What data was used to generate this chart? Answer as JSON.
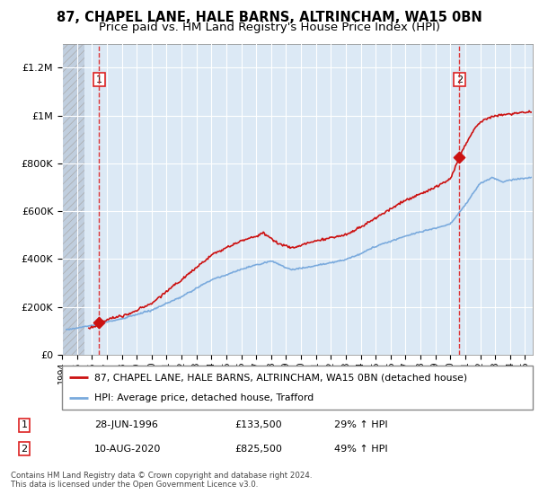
{
  "title1": "87, CHAPEL LANE, HALE BARNS, ALTRINCHAM, WA15 0BN",
  "title2": "Price paid vs. HM Land Registry's House Price Index (HPI)",
  "legend_line1": "87, CHAPEL LANE, HALE BARNS, ALTRINCHAM, WA15 0BN (detached house)",
  "legend_line2": "HPI: Average price, detached house, Trafford",
  "footnote": "Contains HM Land Registry data © Crown copyright and database right 2024.\nThis data is licensed under the Open Government Licence v3.0.",
  "annotation1": {
    "num": "1",
    "date": "28-JUN-1996",
    "price": "£133,500",
    "hpi": "29% ↑ HPI"
  },
  "annotation2": {
    "num": "2",
    "date": "10-AUG-2020",
    "price": "£825,500",
    "hpi": "49% ↑ HPI"
  },
  "sale1_year": 1996.49,
  "sale1_price": 133500,
  "sale2_year": 2020.61,
  "sale2_price": 825500,
  "ylim_max": 1300000,
  "xlim_start": 1994.0,
  "xlim_end": 2025.5,
  "hpi_color": "#7aaadd",
  "price_color": "#cc1111",
  "bg_plot": "#dce9f5",
  "hatch_color": "#c0cede",
  "grid_color": "#ffffff",
  "vline_color": "#dd2222",
  "yticks": [
    0,
    200000,
    400000,
    600000,
    800000,
    1000000,
    1200000
  ],
  "ylabels": [
    "£0",
    "£200K",
    "£400K",
    "£600K",
    "£800K",
    "£1M",
    "£1.2M"
  ],
  "hatch_end_year": 1995.5,
  "red_start_year": 1995.8,
  "blue_start_year": 1994.3
}
